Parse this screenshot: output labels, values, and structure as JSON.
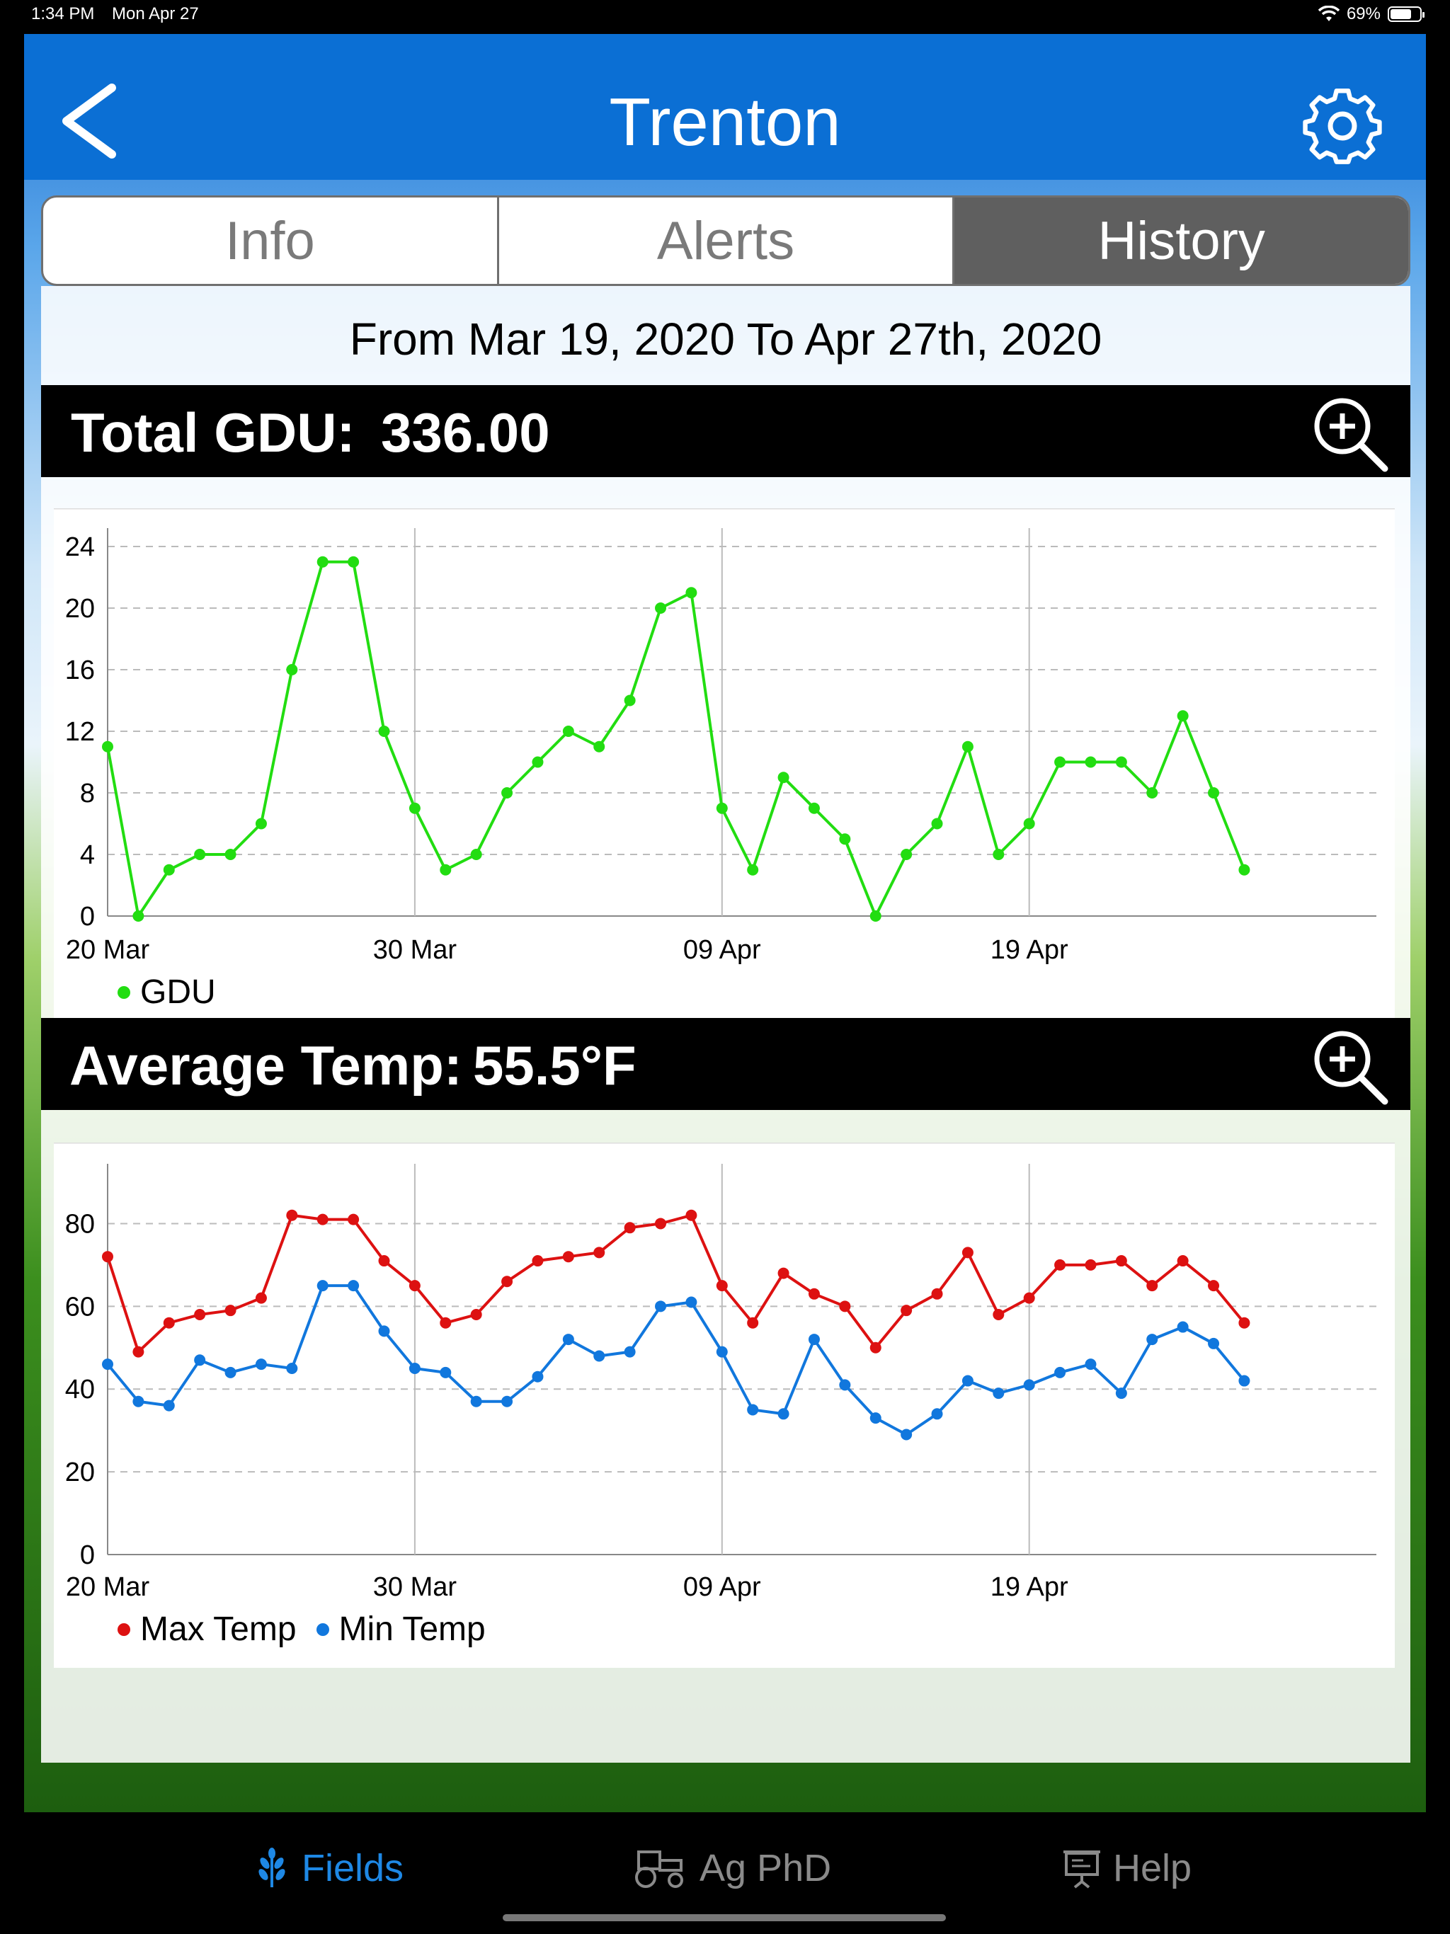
{
  "status": {
    "time": "1:34 PM",
    "date": "Mon Apr 27",
    "battery": "69%"
  },
  "header": {
    "title": "Trenton",
    "back_icon": "chevron-left-icon",
    "settings_icon": "gear-icon"
  },
  "tabs": [
    {
      "label": "Info",
      "active": false
    },
    {
      "label": "Alerts",
      "active": false
    },
    {
      "label": "History",
      "active": true
    }
  ],
  "range": "From Mar 19, 2020 To Apr 27th, 2020",
  "gdu_section": {
    "label": "Total GDU:",
    "value": "336.00",
    "zoom_icon": "zoom-in-icon"
  },
  "temp_section": {
    "label": "Average Temp:",
    "value": "55.5°F",
    "zoom_icon": "zoom-in-icon"
  },
  "colors": {
    "gdu": "#22dd11",
    "max_temp": "#dd1111",
    "min_temp": "#1177dd",
    "nav_blue": "#0b6fd4",
    "tab_active": "#1e88e5"
  },
  "chart_data": [
    {
      "type": "line",
      "x_tick_labels": [
        "20 Mar",
        "30 Mar",
        "09 Apr",
        "19 Apr"
      ],
      "x_tick_index": [
        0,
        10,
        20,
        30
      ],
      "y_ticks": [
        0,
        4,
        8,
        12,
        16,
        20,
        24
      ],
      "ylim": [
        0,
        24
      ],
      "series": [
        {
          "name": "GDU",
          "color": "#22dd11",
          "values": [
            11,
            0,
            3,
            4,
            4,
            6,
            16,
            23,
            23,
            12,
            7,
            3,
            4,
            8,
            10,
            12,
            11,
            14,
            20,
            21,
            7,
            3,
            9,
            7,
            5,
            0,
            4,
            6,
            11,
            4,
            6,
            10,
            10,
            10,
            8,
            13,
            8,
            3
          ]
        }
      ],
      "legend": "bottom-left"
    },
    {
      "type": "line",
      "x_tick_labels": [
        "20 Mar",
        "30 Mar",
        "09 Apr",
        "19 Apr"
      ],
      "x_tick_index": [
        0,
        10,
        20,
        30
      ],
      "y_ticks": [
        0,
        20,
        40,
        60,
        80
      ],
      "ylim": [
        0,
        90
      ],
      "series": [
        {
          "name": "Max Temp",
          "color": "#dd1111",
          "values": [
            72,
            49,
            56,
            58,
            59,
            62,
            82,
            81,
            81,
            71,
            65,
            56,
            58,
            66,
            71,
            72,
            73,
            79,
            80,
            82,
            65,
            56,
            68,
            63,
            60,
            50,
            59,
            63,
            73,
            58,
            62,
            70,
            70,
            71,
            65,
            71,
            65,
            56
          ]
        },
        {
          "name": "Min Temp",
          "color": "#1177dd",
          "values": [
            46,
            37,
            36,
            47,
            44,
            46,
            45,
            65,
            65,
            54,
            45,
            44,
            37,
            37,
            43,
            52,
            48,
            49,
            60,
            61,
            49,
            35,
            34,
            52,
            41,
            33,
            29,
            34,
            42,
            39,
            41,
            44,
            46,
            39,
            52,
            55,
            51,
            42
          ]
        }
      ],
      "legend": "bottom-left"
    }
  ],
  "tabbar": [
    {
      "label": "Fields",
      "icon": "wheat-icon",
      "active": true
    },
    {
      "label": "Ag PhD",
      "icon": "tractor-icon",
      "active": false
    },
    {
      "label": "Help",
      "icon": "presentation-icon",
      "active": false
    }
  ]
}
